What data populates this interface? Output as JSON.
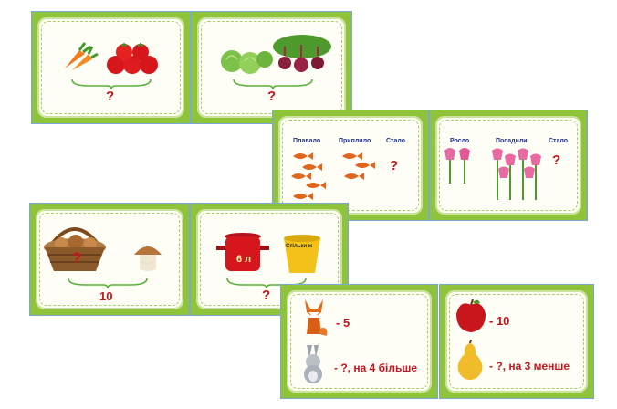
{
  "cards": {
    "vegetables_carrots_tomatoes": {
      "question": "?"
    },
    "vegetables_cabbage_beets": {
      "question": "?"
    },
    "fish": {
      "labels": [
        "Плавало",
        "Приплило",
        "Стало"
      ],
      "question": "?"
    },
    "tulips": {
      "labels": [
        "Росло",
        "Посадили",
        "Стало"
      ],
      "question": "?"
    },
    "mushrooms": {
      "basket_question": "?",
      "total": "10"
    },
    "paint": {
      "pot_label": "6 л",
      "bucket_label": "Стільки ж",
      "question": "?"
    },
    "fox_hare": {
      "fox_count": "- 5",
      "hare_count": "- ?, на 4 більше"
    },
    "apple_pear": {
      "apple_count": "- 10",
      "pear_count": "- ?, на 3 менше"
    }
  },
  "colors": {
    "card_frame": "#8fc43a",
    "question_red": "#c8141b",
    "label_blue": "#1e2f8c"
  }
}
